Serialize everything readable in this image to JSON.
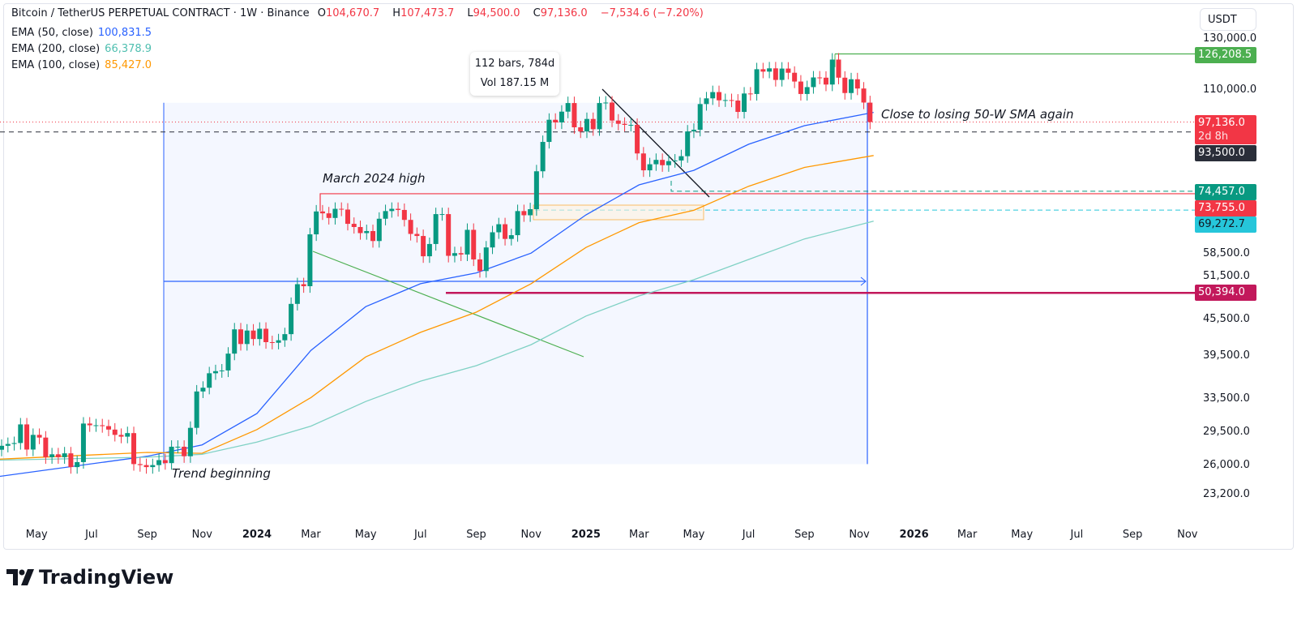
{
  "header": {
    "symbol": "Bitcoin / TetherUS PERPETUAL CONTRACT · 1W · Binance",
    "o_label": "O",
    "o": "104,670.7",
    "h_label": "H",
    "h": "107,473.7",
    "l_label": "L",
    "l": "94,500.0",
    "c_label": "C",
    "c": "97,136.0",
    "change": "−7,534.6 (−7.20%)"
  },
  "indicators": [
    {
      "label": "EMA (50, close)",
      "value": "100,831.5",
      "color": "#2962ff"
    },
    {
      "label": "EMA (200, close)",
      "value": "66,378.9",
      "color": "#7fd1c4"
    },
    {
      "label": "EMA (100, close)",
      "value": "85,427.0",
      "color": "#ff9800"
    }
  ],
  "currency": "USDT",
  "measure": {
    "bars": "112 bars, 784d",
    "vol": "Vol 187.15 M"
  },
  "annotations": {
    "march_high": "March 2024 high",
    "trend": "Trend beginning",
    "sma": "Close to losing 50-W SMA again"
  },
  "price_labels": [
    {
      "value": "126,208.5",
      "color": "#4caf50"
    },
    {
      "value": "97,136.0",
      "sub": "2d 8h",
      "color": "#f23645"
    },
    {
      "value": "93,500.0",
      "color": "#2a2e39"
    },
    {
      "value": "74,457.0",
      "color": "#089981"
    },
    {
      "value": "73,755.0",
      "color": "#f23645"
    },
    {
      "value": "69,272.7",
      "color": "#26c6da"
    },
    {
      "value": "50,394.0",
      "color": "#c2185b"
    }
  ],
  "brand": "TradingView",
  "chart_data": {
    "type": "candlestick",
    "interval": "1W",
    "scale": "log",
    "ylim": [
      21500,
      135000
    ],
    "y_ticks": [
      "130,000.0",
      "110,000.0",
      "58,500.0",
      "51,500.0",
      "45,500.0",
      "39,500.0",
      "33,500.0",
      "29,500.0",
      "26,000.0",
      "23,200.0"
    ],
    "x_ticks": [
      {
        "label": "May",
        "date": "2023-05-01"
      },
      {
        "label": "Jul",
        "date": "2023-07-01"
      },
      {
        "label": "Sep",
        "date": "2023-09-01"
      },
      {
        "label": "Nov",
        "date": "2023-11-01"
      },
      {
        "label": "2024",
        "date": "2024-01-01",
        "bold": true
      },
      {
        "label": "Mar",
        "date": "2024-03-01"
      },
      {
        "label": "May",
        "date": "2024-05-01"
      },
      {
        "label": "Jul",
        "date": "2024-07-01"
      },
      {
        "label": "Sep",
        "date": "2024-09-01"
      },
      {
        "label": "Nov",
        "date": "2024-11-01"
      },
      {
        "label": "2025",
        "date": "2025-01-01",
        "bold": true
      },
      {
        "label": "Mar",
        "date": "2025-03-01"
      },
      {
        "label": "May",
        "date": "2025-05-01"
      },
      {
        "label": "Jul",
        "date": "2025-07-01"
      },
      {
        "label": "Sep",
        "date": "2025-09-01"
      },
      {
        "label": "Nov",
        "date": "2025-11-01"
      },
      {
        "label": "2026",
        "date": "2026-01-01",
        "bold": true
      },
      {
        "label": "Mar",
        "date": "2026-03-01"
      },
      {
        "label": "May",
        "date": "2026-05-01"
      },
      {
        "label": "Jul",
        "date": "2026-07-01"
      },
      {
        "label": "Sep",
        "date": "2026-09-01"
      },
      {
        "label": "Nov",
        "date": "2026-11-01"
      }
    ],
    "first_week": "2023-03-20",
    "weekly_close": [
      28.0,
      28.2,
      28.3,
      30.4,
      27.6,
      29.2,
      28.9,
      26.8,
      27.1,
      26.8,
      27.2,
      25.8,
      26.3,
      30.5,
      30.3,
      30.3,
      30.2,
      29.8,
      29.2,
      29.0,
      29.4,
      26.1,
      26.0,
      25.8,
      26.0,
      26.5,
      26.2,
      27.9,
      27.9,
      26.9,
      30.0,
      34.5,
      35.0,
      37.0,
      37.3,
      37.4,
      39.9,
      43.8,
      41.4,
      43.6,
      42.2,
      43.9,
      41.7,
      41.6,
      42.0,
      43.0,
      48.3,
      52.1,
      51.7,
      63.1,
      68.9,
      68.4,
      67.2,
      69.6,
      69.4,
      65.7,
      64.9,
      63.4,
      63.9,
      61.5,
      67.0,
      69.0,
      69.6,
      69.3,
      66.7,
      63.2,
      62.7,
      58.0,
      60.8,
      68.2,
      68.2,
      58.1,
      58.7,
      58.4,
      64.2,
      57.3,
      54.8,
      60.0,
      63.6,
      65.6,
      62.0,
      62.9,
      69.0,
      67.9,
      69.5,
      80.4,
      90.0,
      98.0,
      97.0,
      101.1,
      104.5,
      95.2,
      93.7,
      98.3,
      94.5,
      104.5,
      104.7,
      97.7,
      96.5,
      96.1,
      96.1,
      86.1,
      80.7,
      82.6,
      84.0,
      82.3,
      83.6,
      83.8,
      85.2,
      93.7,
      94.3,
      104.1,
      106.4,
      109.0,
      105.6,
      105.7,
      105.5,
      101.0,
      108.4,
      108.2,
      119.0,
      117.9,
      119.4,
      114.2,
      119.3,
      117.4,
      113.5,
      108.2,
      111.1,
      115.3,
      115.2,
      112.2,
      123.5,
      115.2,
      108.6,
      114.5,
      110.5,
      104.7,
      97.1
    ],
    "weekly_close_unit": "thousand USDT",
    "last_candle": {
      "open": 104670.7,
      "high": 107473.7,
      "low": 94500.0,
      "close": 97136.0
    },
    "ema": [
      {
        "name": "EMA (50, close)",
        "color": "#2962ff",
        "points": [
          [
            "2023-03-21",
            24900
          ],
          [
            "2023-09-01",
            26900
          ],
          [
            "2023-11-01",
            28100
          ],
          [
            "2024-01-01",
            31700
          ],
          [
            "2024-03-01",
            40400
          ],
          [
            "2024-05-01",
            47800
          ],
          [
            "2024-07-01",
            52200
          ],
          [
            "2024-09-01",
            54400
          ],
          [
            "2024-11-01",
            58700
          ],
          [
            "2025-01-01",
            68000
          ],
          [
            "2025-03-01",
            76300
          ],
          [
            "2025-05-01",
            80700
          ],
          [
            "2025-07-01",
            89200
          ],
          [
            "2025-09-01",
            95800
          ],
          [
            "2025-11-17",
            100831.5
          ]
        ]
      },
      {
        "name": "EMA (100, close)",
        "color": "#ff9800",
        "points": [
          [
            "2023-03-21",
            26600
          ],
          [
            "2023-09-01",
            27300
          ],
          [
            "2023-11-01",
            27200
          ],
          [
            "2024-01-01",
            29800
          ],
          [
            "2024-03-01",
            33700
          ],
          [
            "2024-05-01",
            39400
          ],
          [
            "2024-07-01",
            43300
          ],
          [
            "2024-09-01",
            46800
          ],
          [
            "2024-11-01",
            52200
          ],
          [
            "2025-01-01",
            60000
          ],
          [
            "2025-03-01",
            66000
          ],
          [
            "2025-05-01",
            69200
          ],
          [
            "2025-07-01",
            75900
          ],
          [
            "2025-09-01",
            81600
          ],
          [
            "2025-11-17",
            85427.0
          ]
        ]
      },
      {
        "name": "EMA (200, close)",
        "color": "#7fd1c4",
        "points": [
          [
            "2023-03-21",
            26500
          ],
          [
            "2023-09-01",
            26800
          ],
          [
            "2023-11-01",
            27100
          ],
          [
            "2024-01-01",
            28400
          ],
          [
            "2024-03-01",
            30200
          ],
          [
            "2024-05-01",
            33200
          ],
          [
            "2024-07-01",
            35900
          ],
          [
            "2024-09-01",
            38100
          ],
          [
            "2024-11-01",
            41300
          ],
          [
            "2025-01-01",
            46100
          ],
          [
            "2025-03-01",
            49800
          ],
          [
            "2025-05-01",
            53000
          ],
          [
            "2025-07-01",
            57300
          ],
          [
            "2025-09-01",
            62000
          ],
          [
            "2025-11-17",
            66378.9
          ]
        ]
      }
    ],
    "levels": [
      126208.5,
      97136.0,
      93500.0,
      74457.0,
      73755.0,
      69272.7,
      50394.0
    ],
    "colors": {
      "up": "#089981",
      "down": "#f23645"
    }
  }
}
